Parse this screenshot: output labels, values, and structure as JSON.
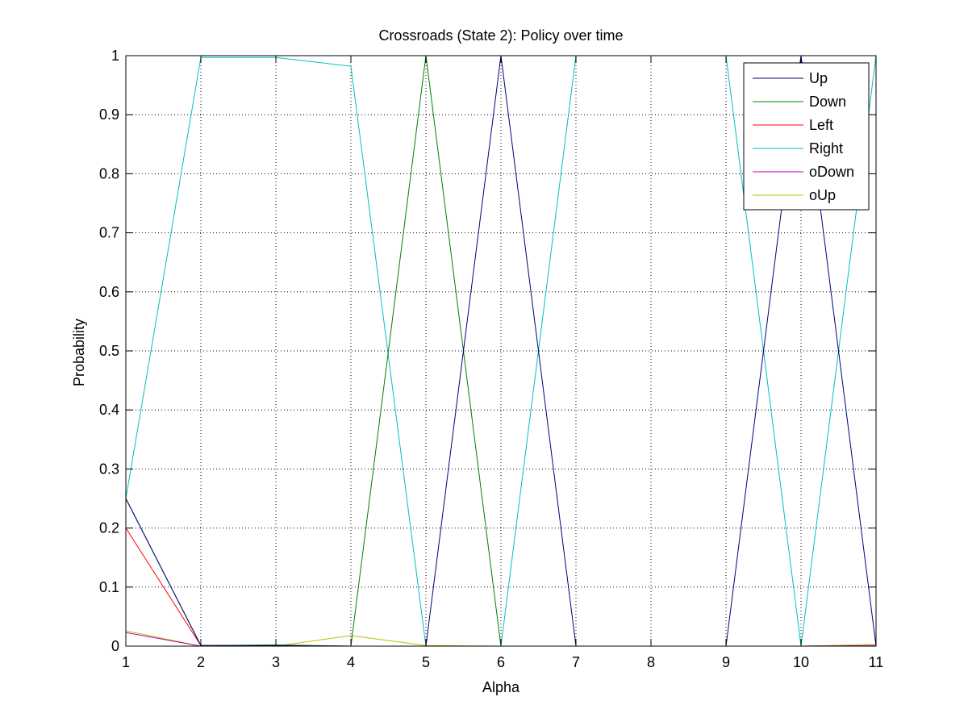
{
  "chart_data": {
    "type": "line",
    "title": "Crossroads (State 2): Policy over time",
    "xlabel": "Alpha",
    "ylabel": "Probability",
    "x": [
      1,
      2,
      3,
      4,
      5,
      6,
      7,
      8,
      9,
      10,
      11
    ],
    "xlim": [
      1,
      11
    ],
    "ylim": [
      0,
      1
    ],
    "xticks": [
      "1",
      "2",
      "3",
      "4",
      "5",
      "6",
      "7",
      "8",
      "9",
      "10",
      "11"
    ],
    "yticks": [
      "0",
      "0.1",
      "0.2",
      "0.3",
      "0.4",
      "0.5",
      "0.6",
      "0.7",
      "0.8",
      "0.9",
      "1"
    ],
    "grid": true,
    "legend_position": "top-right",
    "series": [
      {
        "name": "Up",
        "color": "#00007f",
        "values": [
          0.25,
          0.001,
          0.001,
          0.0,
          0.0,
          1.0,
          0.0,
          0.0,
          0.0,
          1.0,
          0.0
        ]
      },
      {
        "name": "Down",
        "color": "#007f00",
        "values": [
          0.25,
          0.001,
          0.002,
          0.0,
          1.0,
          0.0,
          0.0,
          0.0,
          0.0,
          0.0,
          0.0
        ]
      },
      {
        "name": "Left",
        "color": "#ff0000",
        "values": [
          0.2,
          0.001,
          0.001,
          0.0,
          0.0,
          0.0,
          0.0,
          0.0,
          0.0,
          0.0,
          0.0
        ]
      },
      {
        "name": "Right",
        "color": "#00bfbf",
        "values": [
          0.25,
          0.997,
          0.997,
          0.982,
          0.0,
          0.0,
          1.0,
          1.0,
          1.0,
          0.0,
          1.0
        ]
      },
      {
        "name": "oDown",
        "color": "#bf00bf",
        "values": [
          0.023,
          0.0,
          0.001,
          0.0,
          0.0,
          0.0,
          0.0,
          0.0,
          0.0,
          0.0,
          0.001
        ]
      },
      {
        "name": "oUp",
        "color": "#bfbf00",
        "values": [
          0.026,
          0.0,
          0.0,
          0.018,
          0.001,
          0.0,
          0.0,
          0.0,
          0.0,
          0.0,
          0.003
        ]
      }
    ]
  }
}
